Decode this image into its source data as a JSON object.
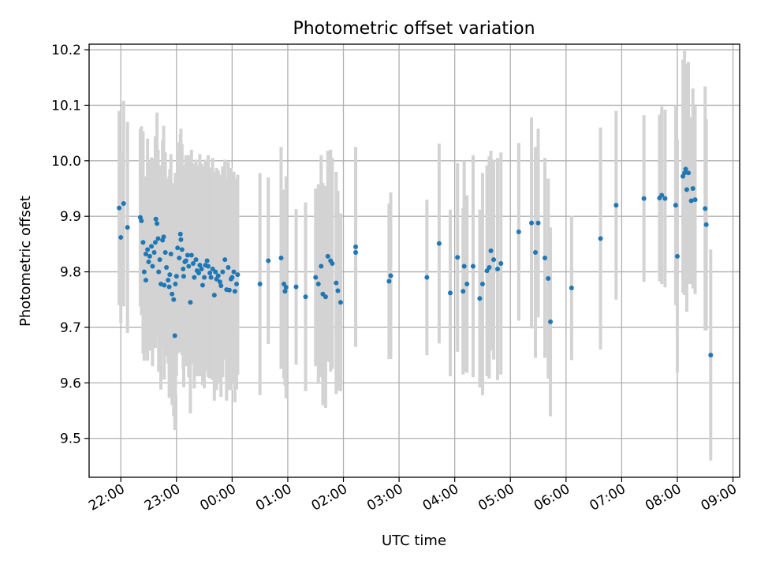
{
  "chart_data": {
    "type": "scatter",
    "title": "Photometric offset variation",
    "xlabel": "UTC time",
    "ylabel": "Photometric offset",
    "x_unit": "hours",
    "x_tick_values": [
      22,
      23,
      24,
      25,
      26,
      27,
      28,
      29,
      30,
      31,
      32,
      33
    ],
    "x_tick_labels": [
      "22:00",
      "23:00",
      "00:00",
      "01:00",
      "02:00",
      "03:00",
      "04:00",
      "05:00",
      "06:00",
      "07:00",
      "08:00",
      "09:00"
    ],
    "y_tick_values": [
      9.5,
      9.6,
      9.7,
      9.8,
      9.9,
      10.0,
      10.1,
      10.2
    ],
    "y_tick_labels": [
      "9.5",
      "9.6",
      "9.7",
      "9.8",
      "9.9",
      "10.0",
      "10.1",
      "10.2"
    ],
    "xlim": [
      21.43,
      33.12
    ],
    "ylim": [
      9.43,
      10.21
    ],
    "grid": true,
    "marker_color": "#1f77b4",
    "errorbar_color": "#d3d3d3",
    "points": [
      [
        21.97,
        9.915,
        0.175
      ],
      [
        22.0,
        9.862,
        0.155
      ],
      [
        22.05,
        9.923,
        0.185
      ],
      [
        22.12,
        9.88,
        0.19
      ],
      [
        22.35,
        9.898,
        0.16
      ],
      [
        22.37,
        9.892,
        0.17
      ],
      [
        22.4,
        9.853,
        0.2
      ],
      [
        22.42,
        9.8,
        0.16
      ],
      [
        22.45,
        9.785,
        0.13
      ],
      [
        22.45,
        9.832,
        0.14
      ],
      [
        22.48,
        9.84,
        0.2
      ],
      [
        22.5,
        9.818,
        0.15
      ],
      [
        22.52,
        9.828,
        0.17
      ],
      [
        22.55,
        9.846,
        0.16
      ],
      [
        22.57,
        9.81,
        0.18
      ],
      [
        22.6,
        9.835,
        0.17
      ],
      [
        22.62,
        9.853,
        0.19
      ],
      [
        22.63,
        9.895,
        0.15
      ],
      [
        22.65,
        9.887,
        0.2
      ],
      [
        22.67,
        9.86,
        0.16
      ],
      [
        22.68,
        9.8,
        0.18
      ],
      [
        22.7,
        9.822,
        0.17
      ],
      [
        22.72,
        9.778,
        0.19
      ],
      [
        22.75,
        9.857,
        0.18
      ],
      [
        22.77,
        9.863,
        0.2
      ],
      [
        22.78,
        9.776,
        0.17
      ],
      [
        22.8,
        9.835,
        0.18
      ],
      [
        22.82,
        9.808,
        0.16
      ],
      [
        22.85,
        9.785,
        0.15
      ],
      [
        22.87,
        9.773,
        0.2
      ],
      [
        22.88,
        9.795,
        0.19
      ],
      [
        22.9,
        9.832,
        0.18
      ],
      [
        22.92,
        9.76,
        0.2
      ],
      [
        22.95,
        9.75,
        0.21
      ],
      [
        22.97,
        9.685,
        0.17
      ],
      [
        22.98,
        9.778,
        0.2
      ],
      [
        23.0,
        9.792,
        0.18
      ],
      [
        23.02,
        9.843,
        0.19
      ],
      [
        23.05,
        9.825,
        0.17
      ],
      [
        23.07,
        9.868,
        0.18
      ],
      [
        23.08,
        9.858,
        0.2
      ],
      [
        23.1,
        9.84,
        0.19
      ],
      [
        23.12,
        9.805,
        0.18
      ],
      [
        23.13,
        9.792,
        0.2
      ],
      [
        23.15,
        9.818,
        0.17
      ],
      [
        23.17,
        9.82,
        0.19
      ],
      [
        23.2,
        9.83,
        0.18
      ],
      [
        23.22,
        9.81,
        0.2
      ],
      [
        23.25,
        9.745,
        0.2
      ],
      [
        23.27,
        9.83,
        0.19
      ],
      [
        23.3,
        9.815,
        0.18
      ],
      [
        23.32,
        9.79,
        0.2
      ],
      [
        23.35,
        9.822,
        0.18
      ],
      [
        23.37,
        9.802,
        0.19
      ],
      [
        23.4,
        9.798,
        0.18
      ],
      [
        23.42,
        9.812,
        0.2
      ],
      [
        23.45,
        9.805,
        0.19
      ],
      [
        23.47,
        9.776,
        0.18
      ],
      [
        23.5,
        9.79,
        0.2
      ],
      [
        23.52,
        9.812,
        0.19
      ],
      [
        23.55,
        9.82,
        0.18
      ],
      [
        23.57,
        9.81,
        0.2
      ],
      [
        23.6,
        9.798,
        0.19
      ],
      [
        23.62,
        9.79,
        0.18
      ],
      [
        23.65,
        9.805,
        0.2
      ],
      [
        23.68,
        9.758,
        0.19
      ],
      [
        23.7,
        9.8,
        0.18
      ],
      [
        23.72,
        9.787,
        0.2
      ],
      [
        23.75,
        9.793,
        0.19
      ],
      [
        23.78,
        9.782,
        0.18
      ],
      [
        23.8,
        9.775,
        0.2
      ],
      [
        23.83,
        9.8,
        0.19
      ],
      [
        23.87,
        9.822,
        0.18
      ],
      [
        23.9,
        9.768,
        0.2
      ],
      [
        23.93,
        9.808,
        0.19
      ],
      [
        23.95,
        9.767,
        0.18
      ],
      [
        23.98,
        9.787,
        0.2
      ],
      [
        24.0,
        9.79,
        0.19
      ],
      [
        24.03,
        9.8,
        0.18
      ],
      [
        24.05,
        9.765,
        0.2
      ],
      [
        24.08,
        9.778,
        0.19
      ],
      [
        24.1,
        9.795,
        0.18
      ],
      [
        24.5,
        9.778,
        0.2
      ],
      [
        24.65,
        9.82,
        0.15
      ],
      [
        24.88,
        9.825,
        0.2
      ],
      [
        24.93,
        9.778,
        0.17
      ],
      [
        24.95,
        9.765,
        0.17
      ],
      [
        24.97,
        9.772,
        0.2
      ],
      [
        25.15,
        9.773,
        0.14
      ],
      [
        25.32,
        9.755,
        0.17
      ],
      [
        25.5,
        9.79,
        0.16
      ],
      [
        25.55,
        9.778,
        0.18
      ],
      [
        25.6,
        9.81,
        0.2
      ],
      [
        25.63,
        9.76,
        0.2
      ],
      [
        25.68,
        9.755,
        0.2
      ],
      [
        25.72,
        9.828,
        0.19
      ],
      [
        25.77,
        9.82,
        0.2
      ],
      [
        25.8,
        9.815,
        0.19
      ],
      [
        25.87,
        9.78,
        0.2
      ],
      [
        25.9,
        9.766,
        0.18
      ],
      [
        25.95,
        9.745,
        0.16
      ],
      [
        26.22,
        9.845,
        0.18
      ],
      [
        26.22,
        9.835,
        0.17
      ],
      [
        26.82,
        9.783,
        0.14
      ],
      [
        26.85,
        9.793,
        0.15
      ],
      [
        27.5,
        9.79,
        0.14
      ],
      [
        27.72,
        9.851,
        0.18
      ],
      [
        27.92,
        9.762,
        0.15
      ],
      [
        28.05,
        9.826,
        0.17
      ],
      [
        28.15,
        9.765,
        0.15
      ],
      [
        28.17,
        9.81,
        0.19
      ],
      [
        28.22,
        9.778,
        0.16
      ],
      [
        28.33,
        9.81,
        0.2
      ],
      [
        28.45,
        9.752,
        0.16
      ],
      [
        28.5,
        9.778,
        0.2
      ],
      [
        28.58,
        9.802,
        0.19
      ],
      [
        28.62,
        9.808,
        0.2
      ],
      [
        28.65,
        9.838,
        0.18
      ],
      [
        28.7,
        9.822,
        0.18
      ],
      [
        28.77,
        9.805,
        0.2
      ],
      [
        28.83,
        9.815,
        0.2
      ],
      [
        29.15,
        9.872,
        0.16
      ],
      [
        29.38,
        9.888,
        0.19
      ],
      [
        29.45,
        9.835,
        0.19
      ],
      [
        29.5,
        9.888,
        0.17
      ],
      [
        29.62,
        9.825,
        0.18
      ],
      [
        29.68,
        9.788,
        0.18
      ],
      [
        29.72,
        9.71,
        0.17
      ],
      [
        30.1,
        9.771,
        0.13
      ],
      [
        30.62,
        9.86,
        0.2
      ],
      [
        30.9,
        9.92,
        0.17
      ],
      [
        31.4,
        9.932,
        0.15
      ],
      [
        31.68,
        9.933,
        0.15
      ],
      [
        31.72,
        9.938,
        0.16
      ],
      [
        31.78,
        9.932,
        0.16
      ],
      [
        31.97,
        9.92,
        0.18
      ],
      [
        32.0,
        9.828,
        0.21
      ],
      [
        32.1,
        9.972,
        0.21
      ],
      [
        32.13,
        9.978,
        0.22
      ],
      [
        32.15,
        9.985,
        0.19
      ],
      [
        32.17,
        9.948,
        0.22
      ],
      [
        32.2,
        9.978,
        0.2
      ],
      [
        32.25,
        9.928,
        0.15
      ],
      [
        32.28,
        9.95,
        0.18
      ],
      [
        32.32,
        9.93,
        0.17
      ],
      [
        32.5,
        9.914,
        0.22
      ],
      [
        32.52,
        9.885,
        0.19
      ],
      [
        32.6,
        9.65,
        0.19
      ]
    ]
  }
}
